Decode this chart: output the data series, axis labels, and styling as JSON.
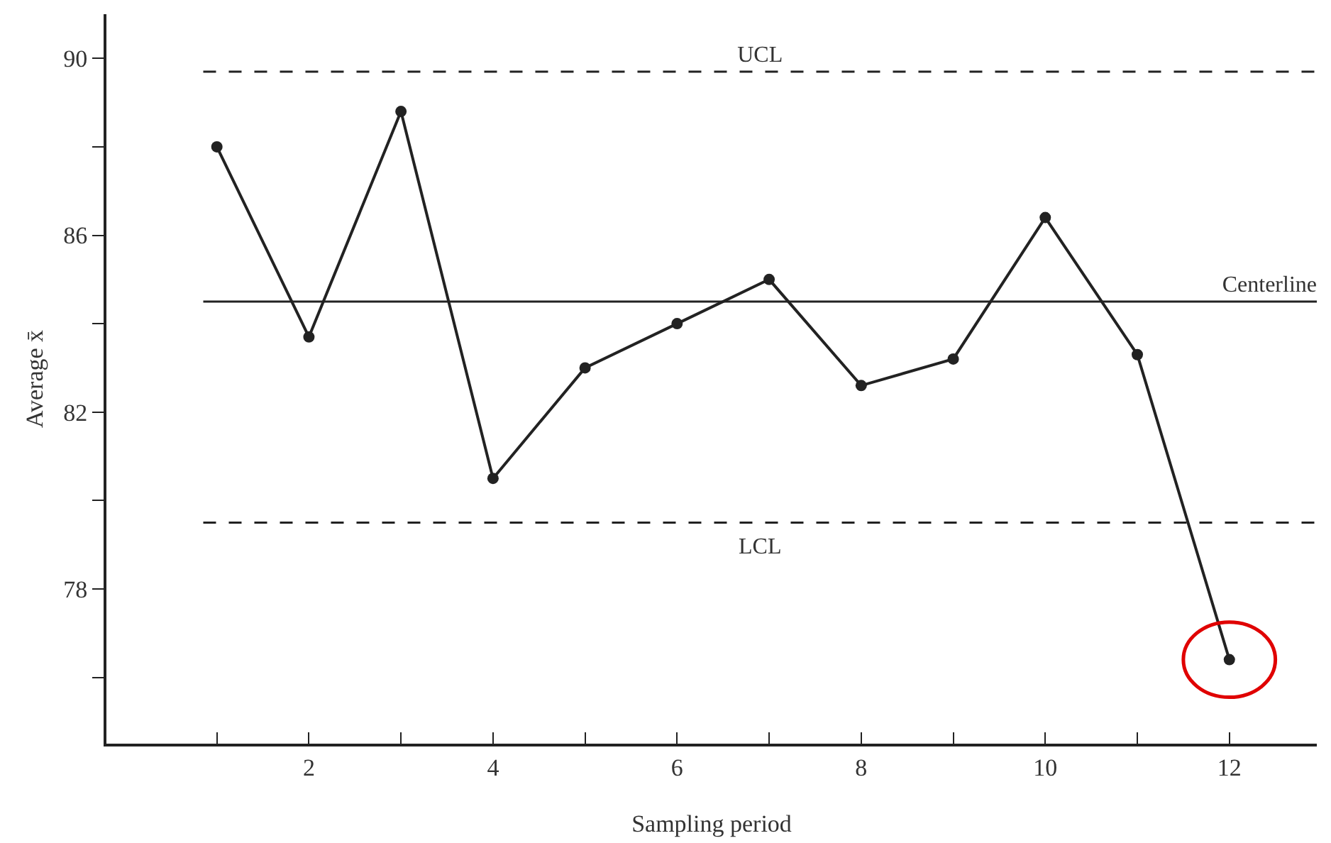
{
  "chart_data": {
    "type": "line",
    "xlabel": "Sampling period",
    "ylabel": "Average x̄",
    "x": [
      1,
      2,
      3,
      4,
      5,
      6,
      7,
      8,
      9,
      10,
      11,
      12
    ],
    "series": [
      {
        "color": "#222222",
        "values": [
          88.0,
          83.7,
          88.8,
          80.5,
          83.0,
          84.0,
          85.0,
          82.6,
          83.2,
          86.4,
          83.3,
          76.4
        ]
      }
    ],
    "xlim": [
      -0.2,
      12.95
    ],
    "xticks": [
      {
        "value": 1,
        "label": null
      },
      2,
      {
        "value": 3,
        "label": null
      },
      4,
      {
        "value": 5,
        "label": null
      },
      6,
      {
        "value": 7,
        "label": null
      },
      8,
      {
        "value": 9,
        "label": null
      },
      10,
      {
        "value": 11,
        "label": null
      },
      12
    ],
    "ylim": [
      74.5,
      91
    ],
    "yticks": [
      {
        "value": 76,
        "label": null
      },
      78,
      {
        "value": 80,
        "label": null
      },
      82,
      {
        "value": 84,
        "label": null
      },
      86,
      {
        "value": 88,
        "label": null
      },
      90
    ],
    "ref_lines": [
      {
        "axis": "y",
        "value": 89.7,
        "label": "UCL",
        "line_style": "dashed",
        "color": "#222222"
      },
      {
        "axis": "y",
        "value": 84.5,
        "label": "Centerline",
        "line_style": "solid",
        "color": "#222222"
      },
      {
        "axis": "y",
        "value": 79.5,
        "label": "LCL",
        "line_style": "dashed",
        "color": "#222222"
      }
    ],
    "grid": false,
    "marker": "circle",
    "line_style": "solid"
  }
}
